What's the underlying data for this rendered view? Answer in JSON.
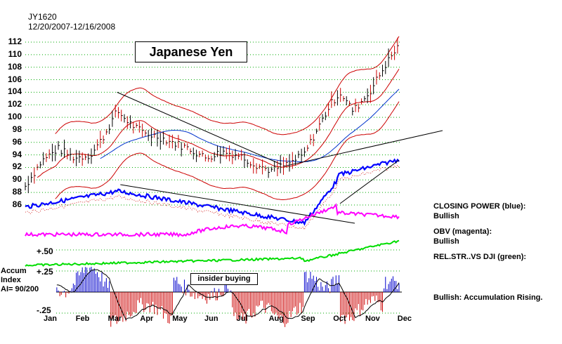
{
  "header": {
    "symbol": "JY1620",
    "date_range": "12/20/2007-12/16/2008"
  },
  "title": "Japanese Yen",
  "annotation": "insider buying",
  "accum": {
    "label1": "Accum",
    "label2": "Index",
    "ai": "AI= 90/200",
    "ticks": [
      "+.50",
      "+.25",
      "-.25"
    ]
  },
  "legend": {
    "closing_power_label": "CLOSING POWER (blue):",
    "closing_power_state": "Bullish",
    "obv_label": "OBV (magenta):",
    "obv_state": "Bullish",
    "relstr_label": "REL.STR..VS DJI (green):",
    "bullish_note": "Bullish: Accumulation Rising."
  },
  "colors": {
    "price": "#000000",
    "band": "#cc0000",
    "ma_blue": "#0033cc",
    "closing_power": "#0000ff",
    "obv": "#ff00ff",
    "relstr": "#00dd00",
    "accum_pos": "#0000cc",
    "accum_neg": "#cc0000",
    "grid": "#00aa00"
  },
  "chart_data": {
    "type": "line",
    "y_ticks": [
      86,
      88,
      90,
      92,
      94,
      96,
      98,
      100,
      102,
      104,
      106,
      108,
      110,
      112
    ],
    "ylim": [
      84.5,
      113
    ],
    "x_ticks": [
      "Jan",
      "Feb",
      "Mar",
      "Apr",
      "May",
      "Jun",
      "Jul",
      "Aug",
      "Sep",
      "Oct",
      "Nov",
      "Dec"
    ],
    "price_months": [
      0,
      0.5,
      1,
      1.5,
      2,
      2.4,
      2.8,
      3.2,
      3.6,
      4,
      4.5,
      5,
      5.5,
      6,
      6.5,
      7,
      7.5,
      8,
      8.5,
      9,
      9.3,
      9.6,
      10,
      10.5,
      11,
      11.4
    ],
    "price_close": [
      89,
      93,
      95,
      93.5,
      94,
      97,
      101,
      99,
      97.5,
      97,
      96,
      95,
      93.5,
      94.5,
      94,
      92.5,
      91.5,
      92.5,
      94,
      99,
      102,
      104,
      101,
      104,
      108.5,
      111.5
    ],
    "resistance_line": [
      [
        2.8,
        104
      ],
      [
        7.8,
        92.5
      ]
    ],
    "series": [
      {
        "name": "CLOSING POWER (blue)"
      },
      {
        "name": "OBV (magenta)"
      },
      {
        "name": "REL.STR..VS DJI (green)"
      }
    ],
    "accum_range": [
      -0.45,
      0.6
    ]
  }
}
